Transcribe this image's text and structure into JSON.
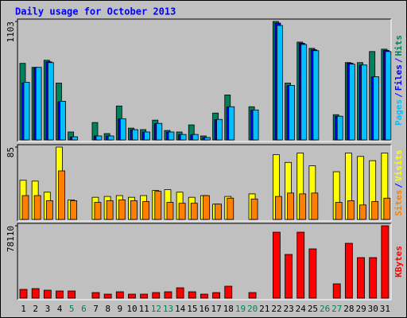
{
  "chart_data": [
    {
      "type": "bar",
      "title": "Daily usage for October 2013",
      "legend_separator": "/",
      "ylim": [
        0,
        1103
      ],
      "yticks": [
        1103
      ],
      "series": [
        {
          "name": "Hits",
          "color": "#00805c",
          "values": [
            713,
            676,
            742,
            529,
            74,
            null,
            162,
            59,
            316,
            110,
            96,
            184,
            88,
            74,
            140,
            37,
            250,
            419,
            null,
            309,
            null,
            1103,
            529,
            911,
            853,
            null,
            235,
            720,
            720,
            823,
            845
          ]
        },
        {
          "name": "Files",
          "color": "#0000ff",
          "values": [
            530,
            670,
            728,
            355,
            28,
            null,
            36,
            36,
            196,
            95,
            73,
            152,
            73,
            50,
            50,
            21,
            189,
            307,
            null,
            277,
            null,
            1088,
            505,
            900,
            840,
            null,
            220,
            715,
            697,
            586,
            834
          ]
        },
        {
          "name": "Pages",
          "color": "#00c0ff",
          "values": [
            537,
            676,
            720,
            360,
            29,
            null,
            37,
            37,
            198,
            96,
            74,
            154,
            74,
            51,
            51,
            22,
            191,
            309,
            null,
            279,
            null,
            1066,
            507,
            889,
            831,
            null,
            221,
            706,
            698,
            588,
            823
          ]
        }
      ]
    },
    {
      "type": "bar",
      "legend_separator": "/",
      "ylim": [
        0,
        85
      ],
      "yticks": [
        85
      ],
      "series": [
        {
          "name": "Visits",
          "color": "#ffff00",
          "values": [
            46,
            45,
            32,
            85,
            23,
            null,
            26,
            27,
            28,
            26,
            28,
            34,
            35,
            32,
            26,
            28,
            18,
            27,
            null,
            30,
            null,
            76,
            67,
            78,
            63,
            null,
            56,
            78,
            74,
            69,
            78
          ]
        },
        {
          "name": "Sites",
          "color": "#ff8000",
          "values": [
            28,
            28,
            22,
            57,
            22,
            null,
            20,
            22,
            23,
            22,
            21,
            33,
            20,
            19,
            19,
            28,
            18,
            25,
            null,
            24,
            null,
            27,
            31,
            30,
            31,
            null,
            20,
            22,
            17,
            21,
            25
          ]
        }
      ]
    },
    {
      "type": "bar",
      "ylim": [
        0,
        78110
      ],
      "yticks": [
        78110
      ],
      "categories": [
        "1",
        "2",
        "3",
        "4",
        "5",
        "6",
        "7",
        "8",
        "9",
        "10",
        "11",
        "12",
        "13",
        "14",
        "15",
        "16",
        "17",
        "18",
        "19",
        "20",
        "21",
        "22",
        "23",
        "24",
        "25",
        "26",
        "27",
        "28",
        "29",
        "30",
        "31"
      ],
      "category_colors": [
        "#000000",
        "#000000",
        "#000000",
        "#000000",
        "#00805c",
        "#00805c",
        "#000000",
        "#000000",
        "#000000",
        "#000000",
        "#000000",
        "#00805c",
        "#00805c",
        "#000000",
        "#000000",
        "#000000",
        "#000000",
        "#000000",
        "#00805c",
        "#00805c",
        "#000000",
        "#000000",
        "#000000",
        "#000000",
        "#000000",
        "#00805c",
        "#00805c",
        "#000000",
        "#000000",
        "#000000",
        "#000000"
      ],
      "series": [
        {
          "name": "KBytes",
          "color": "#ff0000",
          "values": [
            9438,
            10296,
            8580,
            7722,
            7722,
            null,
            6006,
            4290,
            6864,
            4290,
            4290,
            6006,
            6864,
            11154,
            6864,
            4290,
            6006,
            12870,
            null,
            6006,
            null,
            71214,
            47190,
            71214,
            53196,
            null,
            15444,
            59202,
            43758,
            43758,
            78110
          ]
        }
      ]
    }
  ]
}
